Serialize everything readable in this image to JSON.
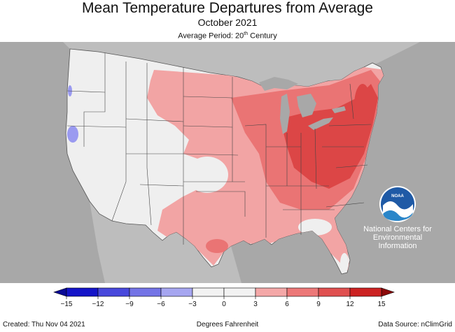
{
  "header": {
    "title": "Mean Temperature Departures from Average",
    "subtitle": "October 2021",
    "period_prefix": "Average Period: 20",
    "period_sup": "th",
    "period_suffix": " Century"
  },
  "logo": {
    "name": "noaa-logo",
    "text": "NOAA",
    "lines": [
      "National Centers for",
      "Environmental",
      "Information"
    ]
  },
  "legend": {
    "ticks": [
      "−15",
      "−12",
      "−9",
      "−6",
      "−3",
      "0",
      "3",
      "6",
      "9",
      "12",
      "15"
    ],
    "colors": [
      "#1414c8",
      "#4848dc",
      "#7474e6",
      "#a6a6f0",
      "#f2f2f2",
      "#f2f2f2",
      "#f4a8a8",
      "#ec7878",
      "#e05050",
      "#cc2222"
    ],
    "arrow_low_color": "#0a0a96",
    "arrow_high_color": "#8c0a0a",
    "units": "Degrees Fahrenheit"
  },
  "footer": {
    "created": "Created: Thu Nov 04 2021",
    "source": "Data Source: nClimGrid"
  },
  "map_colors": {
    "background": "#a8a8a8",
    "land_neutral": "#efefef",
    "warm_light": "#f2a4a4",
    "warm_mid": "#ea7474",
    "warm_dark": "#dc4646",
    "cool_light": "#9a9af0",
    "lakes": "#a8a8a8",
    "ocean": "#a8a8a8"
  }
}
